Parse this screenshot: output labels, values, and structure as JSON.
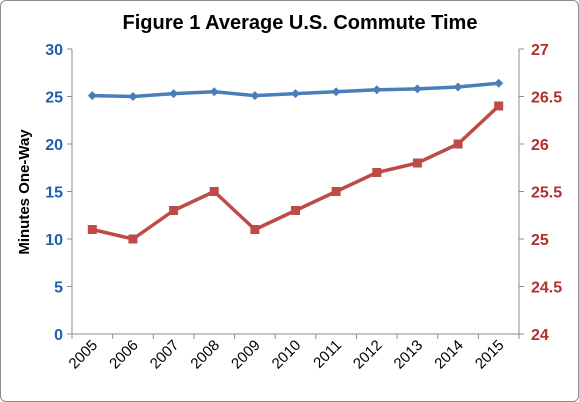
{
  "chart_data": {
    "type": "line",
    "title": "Figure 1  Average U.S. Commute Time",
    "ylabel": "Minutes One-Way",
    "x": [
      "2005",
      "2006",
      "2007",
      "2008",
      "2009",
      "2010",
      "2011",
      "2012",
      "2013",
      "2014",
      "2015"
    ],
    "y_left": {
      "ylim": [
        0,
        30
      ],
      "ticks": [
        "0",
        "5",
        "10",
        "15",
        "20",
        "25",
        "30"
      ]
    },
    "y_right": {
      "ylim": [
        24,
        27
      ],
      "ticks": [
        "24",
        "24.5",
        "25",
        "25.5",
        "26",
        "26.5",
        "27"
      ]
    },
    "series": [
      {
        "axis": "left",
        "color": "#4a7ebb",
        "marker": "diamond",
        "values": [
          25.1,
          25.0,
          25.3,
          25.5,
          25.1,
          25.3,
          25.5,
          25.7,
          25.8,
          26.0,
          26.4
        ]
      },
      {
        "axis": "right",
        "color": "#be4b48",
        "marker": "square",
        "values": [
          25.1,
          25.0,
          25.3,
          25.5,
          25.1,
          25.3,
          25.5,
          25.7,
          25.8,
          26.0,
          26.4
        ]
      }
    ],
    "grid": false,
    "legend": "none"
  }
}
